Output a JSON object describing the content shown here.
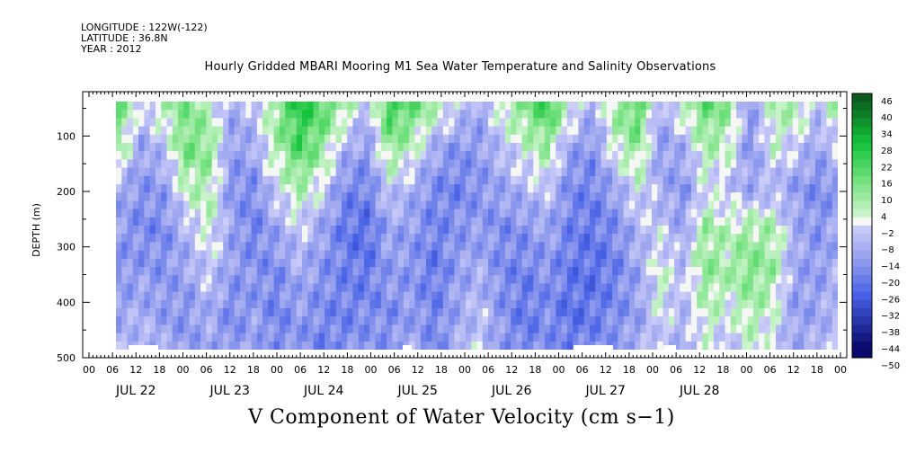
{
  "header": {
    "longitude": "LONGITUDE : 122W(-122)",
    "latitude": "LATITUDE : 36.8N",
    "year": "YEAR : 2012"
  },
  "chart_data": {
    "type": "heatmap",
    "title": "Hourly Gridded MBARI Mooring M1 Sea Water Temperature and Salinity Observations",
    "xlabel": "V Component of Water Velocity (cm s−1)",
    "ylabel": "DEPTH (m)",
    "ylim": [
      500,
      20
    ],
    "yticks": [
      100,
      200,
      300,
      400,
      500
    ],
    "x_hour_labels": [
      "00",
      "06",
      "12",
      "18",
      "00",
      "06",
      "12",
      "18",
      "00",
      "06",
      "12",
      "18",
      "00",
      "06",
      "12",
      "18",
      "00",
      "06",
      "12",
      "18",
      "00",
      "06",
      "12",
      "18",
      "00",
      "06",
      "12",
      "18",
      "00",
      "06",
      "12",
      "18",
      "00"
    ],
    "x_day_labels": [
      "JUL 22",
      "JUL 23",
      "JUL 24",
      "JUL 25",
      "JUL 26",
      "JUL 27",
      "JUL 28"
    ],
    "colorbar": {
      "labels": [
        "46",
        "40",
        "34",
        "28",
        "22",
        "16",
        "10",
        "4",
        "−2",
        "−8",
        "−14",
        "−20",
        "−26",
        "−32",
        "−38",
        "−44",
        "−50"
      ],
      "min": -50,
      "max": 46,
      "step": 3
    },
    "colors": {
      "positive": "#00c028",
      "negative": "#3c5ae6",
      "zero": "#ffffff"
    },
    "v_component_pattern": [
      [
        14,
        -4,
        6,
        12,
        4,
        -10,
        -6,
        10,
        26,
        18,
        8,
        -8,
        22,
        16,
        6,
        -2,
        -12,
        4,
        12,
        22,
        4,
        -10,
        8,
        18,
        -10,
        4,
        16,
        10,
        -14,
        4,
        8,
        -6,
        10
      ],
      [
        8,
        -12,
        -6,
        14,
        10,
        -14,
        -10,
        6,
        20,
        10,
        -8,
        -14,
        10,
        4,
        -10,
        -16,
        -14,
        -6,
        2,
        8,
        -12,
        -16,
        2,
        10,
        -14,
        -10,
        6,
        4,
        -16,
        2,
        -4,
        -12,
        -2
      ],
      [
        -10,
        -16,
        -14,
        4,
        6,
        -16,
        -18,
        -2,
        6,
        -2,
        -18,
        -20,
        -4,
        -10,
        -18,
        -20,
        -16,
        -12,
        -8,
        -4,
        -18,
        -20,
        -12,
        0,
        -10,
        -16,
        -2,
        -6,
        -12,
        -8,
        -14,
        -18,
        -14
      ],
      [
        -14,
        -18,
        -18,
        -8,
        2,
        -12,
        -20,
        -12,
        -4,
        -12,
        -22,
        -24,
        -12,
        -14,
        -20,
        -16,
        -14,
        -18,
        -16,
        -12,
        -20,
        -22,
        -18,
        -8,
        -4,
        -12,
        8,
        4,
        8,
        6,
        -10,
        -16,
        -10
      ],
      [
        -16,
        -14,
        -16,
        -12,
        -4,
        -14,
        -16,
        -18,
        -10,
        -16,
        -20,
        -22,
        -14,
        -16,
        -22,
        -14,
        -10,
        -18,
        -20,
        -16,
        -22,
        -24,
        -20,
        -12,
        2,
        -6,
        10,
        6,
        12,
        8,
        -12,
        -14,
        -8
      ],
      [
        -12,
        -10,
        -14,
        -16,
        -10,
        -18,
        -14,
        -20,
        -14,
        -18,
        -20,
        -18,
        -18,
        -14,
        -20,
        -12,
        -6,
        -16,
        -22,
        -18,
        -24,
        -22,
        -18,
        -14,
        0,
        -8,
        4,
        0,
        6,
        2,
        -14,
        -12,
        -6
      ],
      [
        -8,
        -6,
        -10,
        -14,
        -12,
        -16,
        -10,
        -18,
        -16,
        -20,
        -18,
        -14,
        -16,
        -10,
        -18,
        -10,
        -4,
        -14,
        -20,
        -16,
        -20,
        -18,
        -14,
        -10,
        -6,
        -10,
        -2,
        -6,
        0,
        -4,
        -10,
        -8,
        -4
      ]
    ]
  }
}
